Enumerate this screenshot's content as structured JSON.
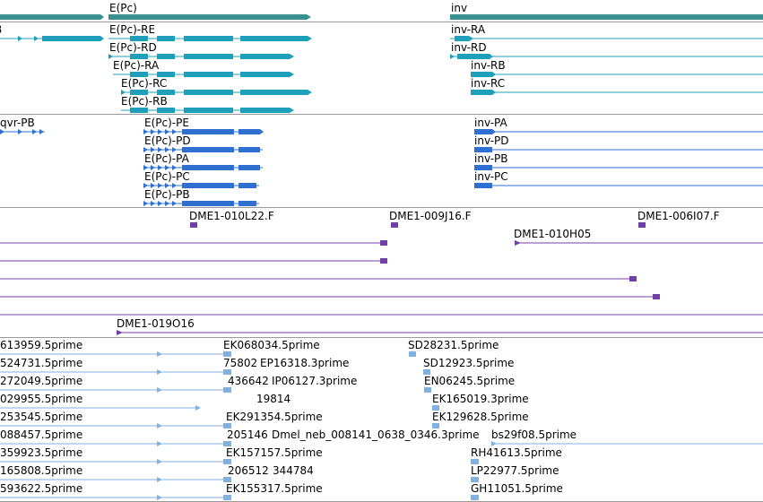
{
  "colors": {
    "gene": "#3a8f8f",
    "mrna": "#1fa0b8",
    "protein": "#2f6fd0",
    "clone": "#7040a8",
    "est": "#7fb2e0",
    "divider": "#9a9a9a"
  },
  "genes_track": {
    "labels": [
      "E(Pc)",
      "inv"
    ]
  },
  "transcripts_track": {
    "labels": [
      "E(Pc)-RE",
      "E(Pc)-RD",
      "E(Pc)-RA",
      "E(Pc)-RC",
      "E(Pc)-RB",
      "inv-RA",
      "inv-RD",
      "inv-RB",
      "inv-RC"
    ]
  },
  "proteins_track": {
    "labels": [
      "qvr-PB",
      "E(Pc)-PE",
      "E(Pc)-PD",
      "E(Pc)-PA",
      "E(Pc)-PC",
      "E(Pc)-PB",
      "inv-PA",
      "inv-PD",
      "inv-PB",
      "inv-PC"
    ]
  },
  "clones_track": {
    "labels": [
      "DME1-010L22.F",
      "DME1-009J16.F",
      "DME1-006I07.F",
      "DME1-010H05",
      "DME1-019O16"
    ]
  },
  "est_track": {
    "left_labels": [
      "613959.5prime",
      "524731.5prime",
      "272049.5prime",
      "029955.5prime",
      "253545.5prime",
      "088457.5prime",
      "359923.5prime",
      "165808.5prime",
      "593622.5prime"
    ],
    "mid_labels": [
      "EK068034.5prime",
      "75802",
      "EP16318.3prime",
      "436642",
      "IP06127.3prime",
      "19814",
      "EK291354.5prime",
      "205146",
      "Dmel_neb_008141_0638_0346.3prime",
      "EK157157.5prime",
      "206512",
      "344784",
      "EK155317.5prime"
    ],
    "right_labels": [
      "SD28231.5prime",
      "SD12923.5prime",
      "EN06245.5prime",
      "EK165019.3prime",
      "EK129628.5prime",
      "bs29f08.5prime",
      "RH41613.5prime",
      "LP22977.5prime",
      "GH11051.5prime"
    ]
  }
}
